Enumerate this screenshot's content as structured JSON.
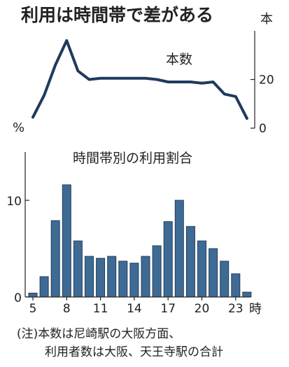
{
  "chart_data": [
    {
      "type": "line",
      "title": "利用は時間帯で差がある",
      "series_label": "本数",
      "left_unit": "%",
      "right_unit": "本",
      "x": [
        5,
        6,
        7,
        8,
        9,
        10,
        11,
        12,
        13,
        14,
        15,
        16,
        17,
        18,
        19,
        20,
        21,
        22,
        23,
        24
      ],
      "values": [
        4.5,
        13.5,
        26,
        36,
        23.5,
        20,
        20.5,
        20.5,
        20.5,
        20.5,
        20.5,
        20,
        19,
        19,
        19,
        18.5,
        19,
        14,
        13,
        4
      ],
      "right_ticks": [
        0,
        20
      ],
      "ylim": [
        0,
        40
      ]
    },
    {
      "type": "bar",
      "title": "時間帯別の利用割合",
      "x": [
        5,
        6,
        7,
        8,
        9,
        10,
        11,
        12,
        13,
        14,
        15,
        16,
        17,
        18,
        19,
        20,
        21,
        22,
        23,
        24
      ],
      "values": [
        0.4,
        2.1,
        7.9,
        11.6,
        5.8,
        4.2,
        4.0,
        4.2,
        3.7,
        3.5,
        4.2,
        5.3,
        7.8,
        10.0,
        7.3,
        5.8,
        5.0,
        3.7,
        2.4,
        0.5
      ],
      "y_ticks": [
        0,
        10
      ],
      "x_ticks": [
        5,
        8,
        11,
        14,
        17,
        20,
        23
      ],
      "x_unit": "時",
      "ylim": [
        0,
        15
      ]
    }
  ],
  "notes": [
    "(注)本数は尼崎駅の大阪方面、",
    "利用者数は大阪、天王寺駅の合計"
  ],
  "colors": {
    "line": "#1f3a5f",
    "bar": "#3e6b95",
    "bar_edge": "#233d57",
    "axis": "#222222"
  }
}
